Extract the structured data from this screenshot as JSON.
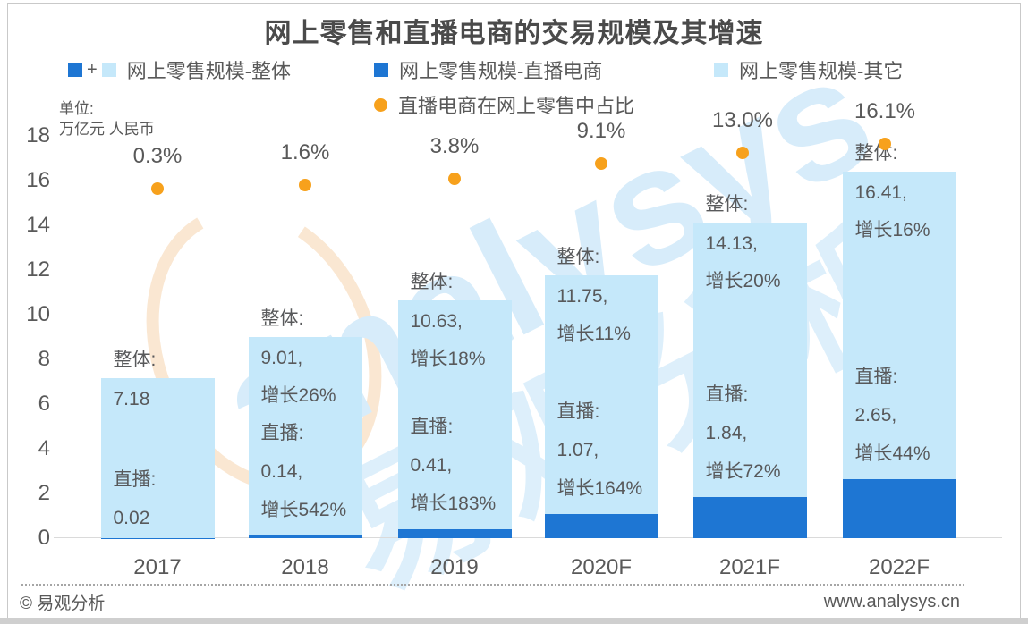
{
  "title": "网上零售和直播电商的交易规模及其增速",
  "unit_label": {
    "line1": "单位:",
    "line2": "万亿元 人民币"
  },
  "legend": {
    "plus": "+",
    "overall": "网上零售规模-整体",
    "live": "网上零售规模-直播电商",
    "other": "网上零售规模-其它",
    "share": "直播电商在网上零售中占比"
  },
  "colors": {
    "live_blue": "#1e76d3",
    "other_blue": "#c5e8fa",
    "dot_orange": "#f7a11c",
    "text_gray": "#595959"
  },
  "watermark": {
    "word": "analysys",
    "cn": "易观分析"
  },
  "footer": {
    "left": "© 易观分析",
    "right": "www.analysys.cn"
  },
  "chart_data": {
    "type": "bar",
    "stacked": true,
    "title": "网上零售和直播电商的交易规模及其增速",
    "ylabel": "万亿元 人民币",
    "ylim": [
      0,
      18
    ],
    "yticks": [
      0,
      2,
      4,
      6,
      8,
      10,
      12,
      14,
      16,
      18
    ],
    "grid": false,
    "legend_position": "top",
    "categories": [
      "2017",
      "2018",
      "2019",
      "2020F",
      "2021F",
      "2022F"
    ],
    "series": [
      {
        "name": "网上零售规模-直播电商",
        "values": [
          0.02,
          0.14,
          0.41,
          1.07,
          1.84,
          2.65
        ],
        "color": "#1e76d3"
      },
      {
        "name": "网上零售规模-其它",
        "values": [
          7.16,
          8.87,
          10.22,
          10.68,
          12.29,
          13.76
        ],
        "color": "#c5e8fa"
      }
    ],
    "totals": [
      7.18,
      9.01,
      10.63,
      11.75,
      14.13,
      16.41
    ],
    "total_growth_pct": [
      null,
      26,
      18,
      11,
      20,
      16
    ],
    "live_growth_pct": [
      null,
      542,
      183,
      164,
      72,
      44
    ],
    "dot_series": {
      "name": "直播电商在网上零售中占比",
      "values_pct": [
        0.3,
        1.6,
        3.8,
        9.1,
        13.0,
        16.1
      ],
      "labels": [
        "0.3%",
        "1.6%",
        "3.8%",
        "9.1%",
        "13.0%",
        "16.1%"
      ],
      "color": "#f7a11c"
    },
    "annotations": [
      {
        "overall_label": "整体:",
        "overall_lines": [
          "7.18"
        ],
        "live_lines": [
          "直播:",
          "0.02"
        ]
      },
      {
        "overall_label": "整体:",
        "overall_lines": [
          "9.01,",
          "增长26%"
        ],
        "live_lines": [
          "直播:",
          "0.14,",
          "增长542%"
        ]
      },
      {
        "overall_label": "整体:",
        "overall_lines": [
          "10.63,",
          "增长18%"
        ],
        "live_lines": [
          "直播:",
          "0.41,",
          "增长183%"
        ]
      },
      {
        "overall_label": "整体:",
        "overall_lines": [
          "11.75,",
          "增长11%"
        ],
        "live_lines": [
          "直播:",
          "1.07,",
          "增长164%"
        ]
      },
      {
        "overall_label": "整体:",
        "overall_lines": [
          "14.13,",
          "增长20%"
        ],
        "live_lines": [
          "直播:",
          "1.84,",
          "增长72%"
        ]
      },
      {
        "overall_label": "整体:",
        "overall_lines": [
          "16.41,",
          "增长16%"
        ],
        "live_lines": [
          "直播:",
          "2.65,",
          "增长44%"
        ]
      }
    ]
  }
}
